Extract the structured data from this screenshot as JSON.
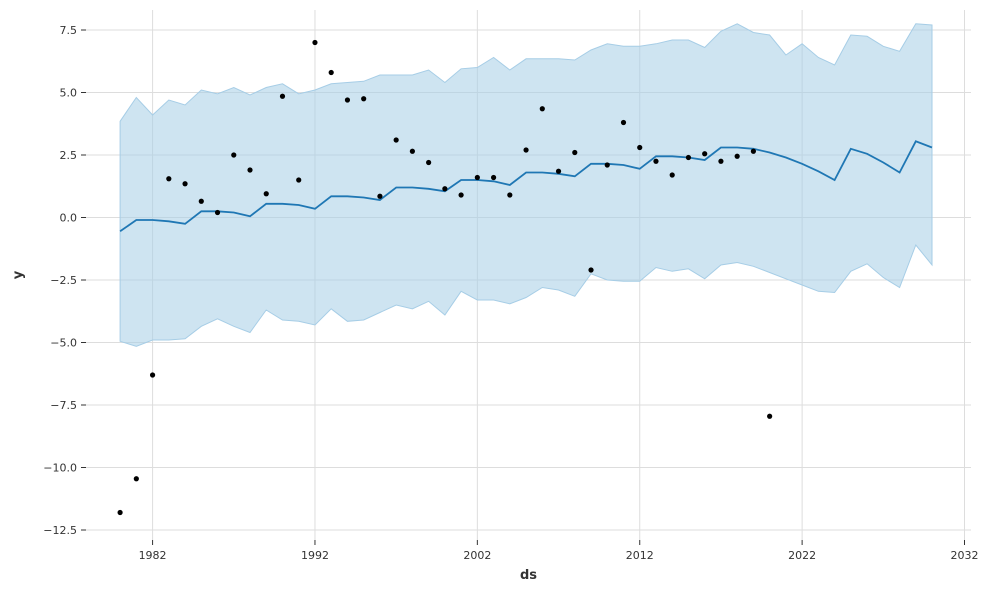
{
  "chart_data": {
    "type": "line",
    "title": "",
    "xlabel": "ds",
    "ylabel": "y",
    "xlim": [
      1977.9,
      2032.4
    ],
    "ylim": [
      -12.9,
      8.3
    ],
    "grid": true,
    "legend": "none",
    "x_ticks": [
      1982,
      1992,
      2002,
      2012,
      2022,
      2032
    ],
    "y_ticks": [
      7.5,
      5.0,
      2.5,
      0.0,
      -2.5,
      -5.0,
      -7.5,
      -10.0,
      -12.5
    ],
    "y_tick_labels": [
      "7.5",
      "5.0",
      "2.5",
      "0.0",
      "−2.5",
      "−5.0",
      "−7.5",
      "−10.0",
      "−12.5"
    ],
    "colors": {
      "forecast": "#1f77b4",
      "interval": "#a6cde6",
      "points": "#000000",
      "grid": "#dddddd"
    },
    "observed": {
      "x": [
        1980,
        1981,
        1982,
        1983,
        1984,
        1985,
        1986,
        1987,
        1988,
        1989,
        1990,
        1991,
        1992,
        1993,
        1994,
        1995,
        1996,
        1997,
        1998,
        1999,
        2000,
        2001,
        2002,
        2003,
        2004,
        2005,
        2006,
        2007,
        2008,
        2009,
        2010,
        2011,
        2012,
        2013,
        2014,
        2015,
        2016,
        2017,
        2018,
        2019,
        2020
      ],
      "y": [
        -11.8,
        -10.45,
        -6.3,
        1.55,
        1.35,
        0.65,
        0.2,
        2.5,
        1.9,
        0.95,
        4.85,
        1.5,
        7.0,
        5.8,
        4.7,
        4.75,
        0.85,
        3.1,
        2.65,
        2.2,
        1.15,
        0.9,
        1.6,
        1.6,
        0.9,
        2.7,
        4.35,
        1.85,
        2.6,
        -2.1,
        2.1,
        3.8,
        2.8,
        2.25,
        1.7,
        2.4,
        2.55,
        2.25,
        2.45,
        2.65,
        -7.95
      ]
    },
    "forecast": {
      "x": [
        1980,
        1981,
        1982,
        1983,
        1984,
        1985,
        1986,
        1987,
        1988,
        1989,
        1990,
        1991,
        1992,
        1993,
        1994,
        1995,
        1996,
        1997,
        1998,
        1999,
        2000,
        2001,
        2002,
        2003,
        2004,
        2005,
        2006,
        2007,
        2008,
        2009,
        2010,
        2011,
        2012,
        2013,
        2014,
        2015,
        2016,
        2017,
        2018,
        2019,
        2020,
        2021,
        2022,
        2023,
        2024,
        2025,
        2026,
        2027,
        2028,
        2029,
        2030
      ],
      "yhat": [
        -0.55,
        -0.1,
        -0.1,
        -0.15,
        -0.25,
        0.25,
        0.25,
        0.2,
        0.05,
        0.55,
        0.55,
        0.5,
        0.35,
        0.85,
        0.85,
        0.8,
        0.7,
        1.2,
        1.2,
        1.15,
        1.05,
        1.5,
        1.5,
        1.45,
        1.3,
        1.8,
        1.8,
        1.75,
        1.65,
        2.15,
        2.15,
        2.1,
        1.95,
        2.45,
        2.45,
        2.4,
        2.3,
        2.8,
        2.8,
        2.75,
        2.6,
        2.4,
        2.15,
        1.85,
        1.5,
        2.75,
        2.55,
        2.2,
        1.8,
        3.05,
        2.8
      ],
      "lower": [
        -4.95,
        -5.15,
        -4.9,
        -4.9,
        -4.85,
        -4.35,
        -4.05,
        -4.35,
        -4.6,
        -3.7,
        -4.1,
        -4.15,
        -4.3,
        -3.65,
        -4.15,
        -4.1,
        -3.8,
        -3.5,
        -3.65,
        -3.35,
        -3.9,
        -2.95,
        -3.3,
        -3.3,
        -3.45,
        -3.2,
        -2.8,
        -2.9,
        -3.15,
        -2.25,
        -2.5,
        -2.55,
        -2.55,
        -2.0,
        -2.15,
        -2.05,
        -2.45,
        -1.9,
        -1.8,
        -1.95,
        -2.2,
        -2.45,
        -2.7,
        -2.95,
        -3.0,
        -2.15,
        -1.85,
        -2.4,
        -2.8,
        -1.1,
        -1.9
      ],
      "upper": [
        3.85,
        4.8,
        4.1,
        4.7,
        4.5,
        5.1,
        4.95,
        5.2,
        4.9,
        5.2,
        5.35,
        4.95,
        5.1,
        5.35,
        5.4,
        5.45,
        5.7,
        5.7,
        5.7,
        5.9,
        5.4,
        5.95,
        6.0,
        6.4,
        5.9,
        6.35,
        6.35,
        6.35,
        6.3,
        6.7,
        6.95,
        6.85,
        6.85,
        6.95,
        7.1,
        7.1,
        6.8,
        7.45,
        7.75,
        7.4,
        7.3,
        6.5,
        6.95,
        6.4,
        6.1,
        7.3,
        7.25,
        6.85,
        6.65,
        7.75,
        7.7
      ]
    }
  }
}
